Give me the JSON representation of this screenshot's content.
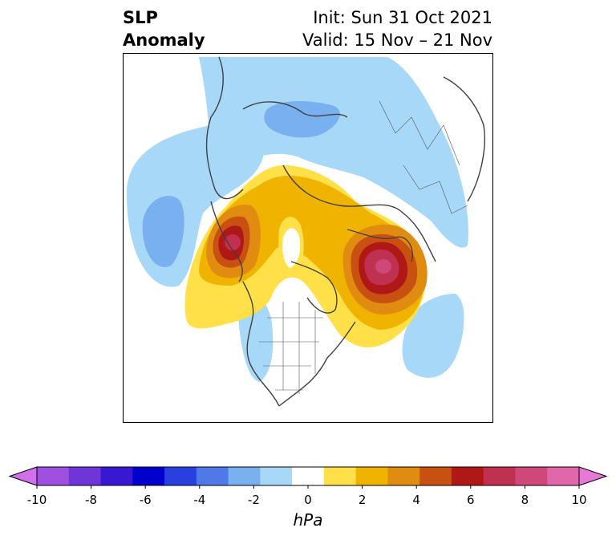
{
  "title": {
    "left_line1": "SLP",
    "left_line2": "Anomaly",
    "right_line1": "Init: Sun 31 Oct 2021",
    "right_line2": "Valid: 15 Nov – 21 Nov"
  },
  "colorbar": {
    "units": "hPa",
    "range": [
      -10,
      10
    ],
    "ticks": [
      "-10",
      "-8",
      "-6",
      "-4",
      "-2",
      "0",
      "2",
      "4",
      "6",
      "8",
      "10"
    ],
    "colors": [
      "#d070ea",
      "#a050e0",
      "#7035d8",
      "#3818d2",
      "#0000cc",
      "#2840e0",
      "#5078e8",
      "#78b0f0",
      "#a8d8f8",
      "#ffffff",
      "#ffe048",
      "#f0b400",
      "#e08c10",
      "#c85010",
      "#b01818",
      "#c03050",
      "#d04878",
      "#e068a8",
      "#e878d8"
    ]
  },
  "map": {
    "projection": "north polar stereographic",
    "variable": "sea level pressure anomaly",
    "features": [
      {
        "type": "positive-center",
        "region": "Alaska / Gulf of Alaska",
        "peak_hPa": 7
      },
      {
        "type": "positive-center",
        "region": "Greenland / N Atlantic",
        "peak_hPa": 8
      },
      {
        "type": "negative-center",
        "region": "N Pacific",
        "peak_hPa": -3
      },
      {
        "type": "negative-center",
        "region": "N Eurasia",
        "peak_hPa": -3
      },
      {
        "type": "negative-center",
        "region": "Central Atlantic",
        "peak_hPa": -2
      }
    ]
  }
}
